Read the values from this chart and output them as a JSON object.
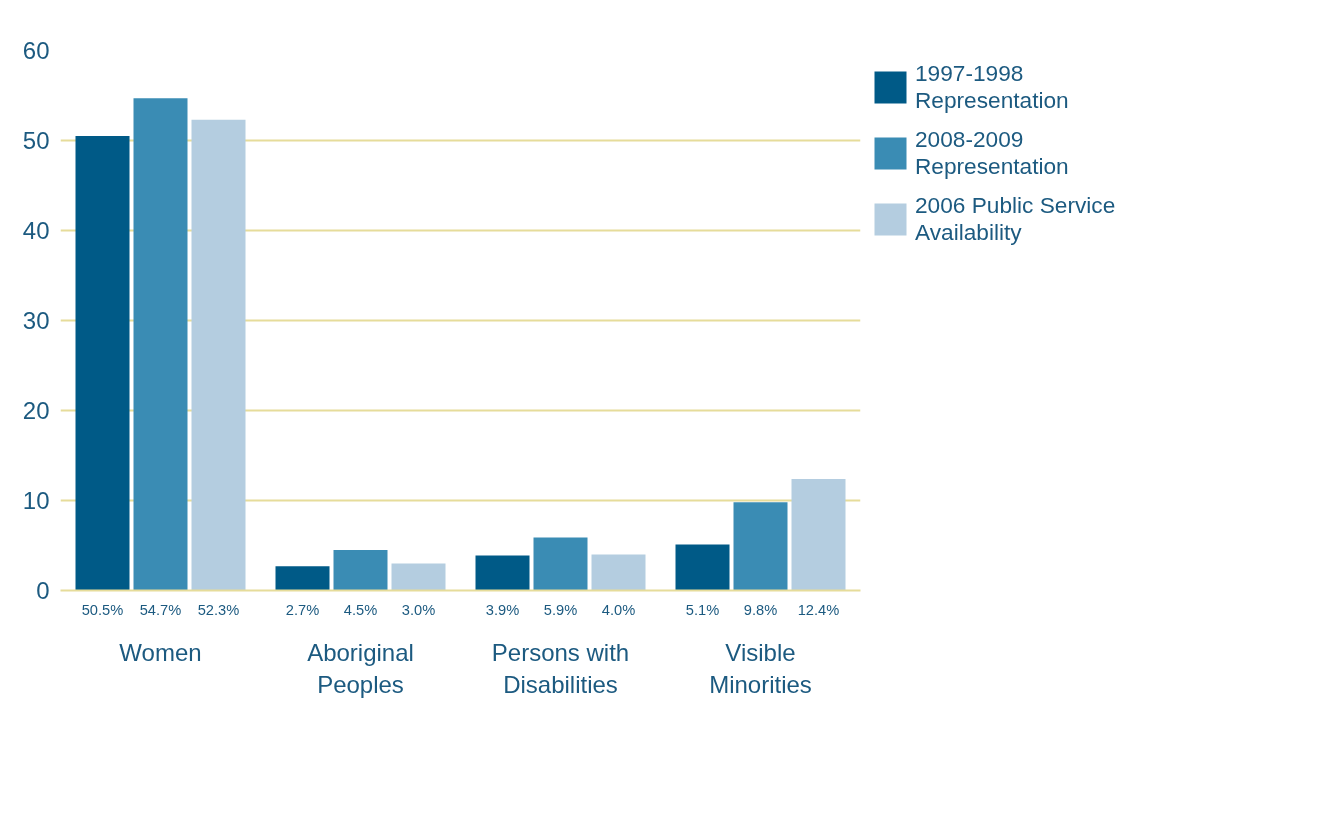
{
  "chart_data": {
    "type": "bar",
    "categories": [
      "Women",
      "Aboriginal Peoples",
      "Persons with Disabilities",
      "Visible Minorities"
    ],
    "series": [
      {
        "name": "1997-1998 Representation",
        "color": "#005a87",
        "values": [
          50.5,
          2.7,
          3.9,
          5.1
        ],
        "value_labels": [
          "50.5%",
          "2.7%",
          "3.9%",
          "5.1%"
        ]
      },
      {
        "name": "2008-2009 Representation",
        "color": "#3a8cb4",
        "values": [
          54.7,
          4.5,
          5.9,
          9.8
        ],
        "value_labels": [
          "54.7%",
          "4.5%",
          "5.9%",
          "9.8%"
        ]
      },
      {
        "name": "2006 Public Service Availability",
        "color": "#b4cde0",
        "values": [
          52.3,
          3.0,
          4.0,
          12.4
        ],
        "value_labels": [
          "52.3%",
          "3.0%",
          "4.0%",
          "12.4%"
        ]
      }
    ],
    "ylim": [
      0,
      60
    ],
    "yticks": [
      0,
      10,
      20,
      30,
      40,
      50,
      60
    ],
    "grid": "y",
    "legend": "top right"
  }
}
